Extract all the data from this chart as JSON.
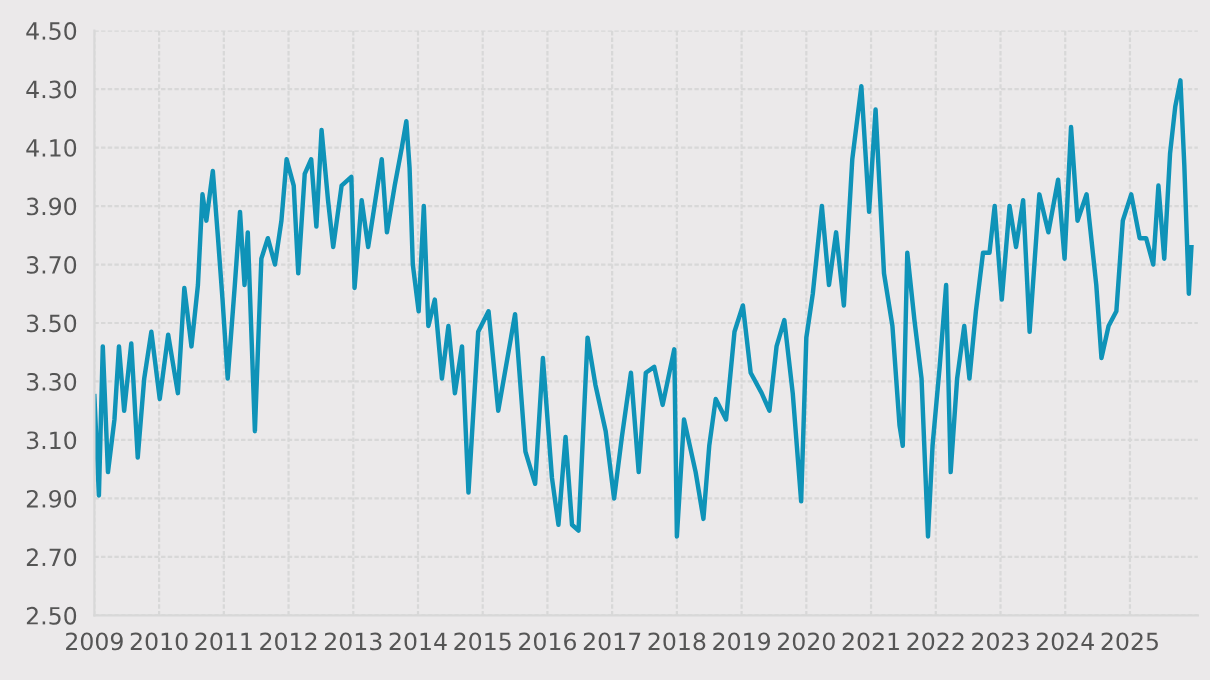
{
  "chart_data": {
    "type": "line",
    "xlim": [
      2009,
      2026.05
    ],
    "ylim": [
      2.5,
      4.5
    ],
    "xticks": [
      2009,
      2010,
      2011,
      2012,
      2013,
      2014,
      2015,
      2016,
      2017,
      2018,
      2019,
      2020,
      2021,
      2022,
      2023,
      2024,
      2025
    ],
    "yticks": [
      {
        "value": 2.5,
        "label": "2.50"
      },
      {
        "value": 2.7,
        "label": "2.70"
      },
      {
        "value": 2.9,
        "label": "2.90"
      },
      {
        "value": 3.1,
        "label": "3.10"
      },
      {
        "value": 3.3,
        "label": "3.30"
      },
      {
        "value": 3.5,
        "label": "3.50"
      },
      {
        "value": 3.7,
        "label": "3.70"
      },
      {
        "value": 3.9,
        "label": "3.90"
      },
      {
        "value": 4.1,
        "label": "4.10"
      },
      {
        "value": 4.3,
        "label": "4.30"
      },
      {
        "value": 4.5,
        "label": "4.50"
      }
    ],
    "grid": true,
    "marker": "none",
    "line_style": "solid",
    "series": [
      {
        "color": "#0f93b8",
        "x": [
          2009.0,
          2009.07,
          2009.13,
          2009.21,
          2009.31,
          2009.38,
          2009.46,
          2009.57,
          2009.67,
          2009.77,
          2009.88,
          2010.01,
          2010.14,
          2010.29,
          2010.39,
          2010.5,
          2010.6,
          2010.67,
          2010.73,
          2010.83,
          2010.91,
          2010.98,
          2011.06,
          2011.17,
          2011.25,
          2011.32,
          2011.37,
          2011.48,
          2011.58,
          2011.68,
          2011.79,
          2011.89,
          2011.97,
          2012.08,
          2012.15,
          2012.25,
          2012.35,
          2012.43,
          2012.51,
          2012.61,
          2012.69,
          2012.82,
          2012.97,
          2013.02,
          2013.13,
          2013.23,
          2013.39,
          2013.44,
          2013.52,
          2013.64,
          2013.75,
          2013.82,
          2013.87,
          2013.92,
          2014.01,
          2014.09,
          2014.16,
          2014.26,
          2014.37,
          2014.47,
          2014.57,
          2014.68,
          2014.78,
          2014.93,
          2015.09,
          2015.24,
          2015.5,
          2015.66,
          2015.81,
          2015.93,
          2016.07,
          2016.17,
          2016.28,
          2016.38,
          2016.48,
          2016.62,
          2016.74,
          2016.9,
          2017.03,
          2017.15,
          2017.29,
          2017.41,
          2017.52,
          2017.65,
          2017.78,
          2017.96,
          2018.0,
          2018.11,
          2018.29,
          2018.41,
          2018.5,
          2018.6,
          2018.76,
          2018.89,
          2019.02,
          2019.14,
          2019.31,
          2019.43,
          2019.54,
          2019.66,
          2019.79,
          2019.92,
          2020.0,
          2020.1,
          2020.24,
          2020.35,
          2020.46,
          2020.58,
          2020.71,
          2020.85,
          2020.97,
          2021.07,
          2021.2,
          2021.33,
          2021.44,
          2021.49,
          2021.56,
          2021.67,
          2021.78,
          2021.88,
          2021.95,
          2022.06,
          2022.16,
          2022.23,
          2022.33,
          2022.44,
          2022.52,
          2022.62,
          2022.73,
          2022.83,
          2022.91,
          2023.02,
          2023.14,
          2023.24,
          2023.35,
          2023.45,
          2023.6,
          2023.74,
          2023.89,
          2023.99,
          2024.09,
          2024.19,
          2024.33,
          2024.48,
          2024.56,
          2024.67,
          2024.79,
          2024.89,
          2025.02,
          2025.15,
          2025.25,
          2025.36,
          2025.44,
          2025.53,
          2025.62,
          2025.7,
          2025.78,
          2025.84,
          2025.91,
          2025.95
        ],
        "values": [
          3.25,
          2.91,
          3.42,
          2.99,
          3.17,
          3.42,
          3.2,
          3.43,
          3.04,
          3.31,
          3.47,
          3.24,
          3.46,
          3.26,
          3.62,
          3.42,
          3.63,
          3.94,
          3.85,
          4.02,
          3.79,
          3.58,
          3.31,
          3.63,
          3.88,
          3.63,
          3.81,
          3.13,
          3.72,
          3.79,
          3.7,
          3.85,
          4.06,
          3.97,
          3.67,
          4.01,
          4.06,
          3.83,
          4.16,
          3.92,
          3.76,
          3.97,
          4.0,
          3.62,
          3.92,
          3.76,
          3.99,
          4.06,
          3.81,
          3.97,
          4.1,
          4.19,
          4.03,
          3.7,
          3.54,
          3.9,
          3.49,
          3.58,
          3.31,
          3.49,
          3.26,
          3.42,
          2.92,
          3.47,
          3.54,
          3.2,
          3.53,
          3.06,
          2.95,
          3.38,
          2.97,
          2.81,
          3.11,
          2.81,
          2.79,
          3.45,
          3.29,
          3.13,
          2.9,
          3.11,
          3.33,
          2.99,
          3.33,
          3.35,
          3.22,
          3.41,
          2.77,
          3.17,
          2.99,
          2.83,
          3.08,
          3.24,
          3.17,
          3.47,
          3.56,
          3.33,
          3.26,
          3.2,
          3.42,
          3.51,
          3.26,
          2.89,
          3.45,
          3.6,
          3.9,
          3.63,
          3.81,
          3.56,
          4.06,
          4.31,
          3.88,
          4.23,
          3.67,
          3.49,
          3.15,
          3.08,
          3.74,
          3.51,
          3.31,
          2.77,
          3.08,
          3.35,
          3.63,
          2.99,
          3.31,
          3.49,
          3.31,
          3.54,
          3.74,
          3.74,
          3.9,
          3.58,
          3.9,
          3.76,
          3.92,
          3.47,
          3.94,
          3.81,
          3.99,
          3.72,
          4.17,
          3.85,
          3.94,
          3.63,
          3.38,
          3.49,
          3.54,
          3.85,
          3.94,
          3.79,
          3.79,
          3.7,
          3.97,
          3.72,
          4.08,
          4.24,
          4.33,
          4.04,
          3.6,
          3.76
        ]
      }
    ]
  }
}
